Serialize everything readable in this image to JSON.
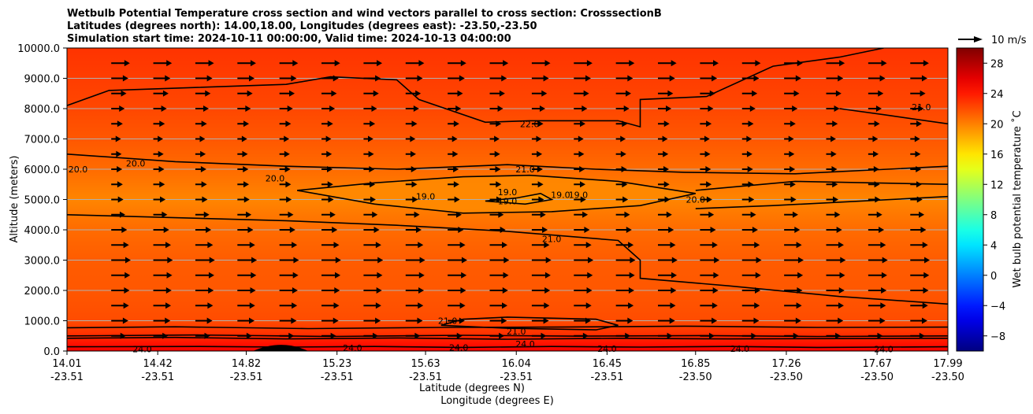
{
  "chart_data": {
    "type": "heatmap",
    "title": [
      "Wetbulb Potential Temperature cross section and wind vectors parallel to cross section: CrosssectionB",
      "Latitudes (degrees north): 14.00,18.00, Longitudes (degrees east): -23.50,-23.50",
      "Simulation start time: 2024-10-11 00:00:00, Valid time: 2024-10-13 04:00:00"
    ],
    "ylabel": "Altitude (meters)",
    "xlabel": "Latitude (degrees N)",
    "xlabel2": "Longitude (degrees E)",
    "ylim": [
      0,
      10000
    ],
    "y_ticks": [
      "0.0",
      "1000.0",
      "2000.0",
      "3000.0",
      "4000.0",
      "5000.0",
      "6000.0",
      "7000.0",
      "8000.0",
      "9000.0",
      "10000.0"
    ],
    "y_tick_values": [
      0,
      1000,
      2000,
      3000,
      4000,
      5000,
      6000,
      7000,
      8000,
      9000,
      10000
    ],
    "x_ticks": [
      {
        "lat": "14.01",
        "lon": "-23.51"
      },
      {
        "lat": "14.42",
        "lon": "-23.51"
      },
      {
        "lat": "14.82",
        "lon": "-23.51"
      },
      {
        "lat": "15.23",
        "lon": "-23.51"
      },
      {
        "lat": "15.63",
        "lon": "-23.51"
      },
      {
        "lat": "16.04",
        "lon": "-23.51"
      },
      {
        "lat": "16.45",
        "lon": "-23.51"
      },
      {
        "lat": "16.85",
        "lon": "-23.50"
      },
      {
        "lat": "17.26",
        "lon": "-23.50"
      },
      {
        "lat": "17.67",
        "lon": "-23.50"
      },
      {
        "lat": "17.99",
        "lon": "-23.50"
      }
    ],
    "xlim": [
      14.01,
      17.99
    ],
    "colorbar": {
      "label": "Wet bulb potential temperature ˚C",
      "ticks": [
        "−8",
        "−4",
        "0",
        "4",
        "8",
        "12",
        "16",
        "20",
        "24",
        "28"
      ],
      "tick_values": [
        -8,
        -4,
        0,
        4,
        8,
        12,
        16,
        20,
        24,
        28
      ],
      "range": [
        -10,
        30
      ],
      "colormap": "jet"
    },
    "quiver_key": "10 m/s",
    "grid": "horizontal",
    "field_profile": [
      {
        "altitude": 0,
        "theta_w": 25.5
      },
      {
        "altitude": 250,
        "theta_w": 24.3
      },
      {
        "altitude": 600,
        "theta_w": 23.0
      },
      {
        "altitude": 1000,
        "theta_w": 22.0
      },
      {
        "altitude": 2000,
        "theta_w": 21.6
      },
      {
        "altitude": 3000,
        "theta_w": 21.4
      },
      {
        "altitude": 4000,
        "theta_w": 20.8
      },
      {
        "altitude": 5000,
        "theta_w": 19.8
      },
      {
        "altitude": 6000,
        "theta_w": 20.8
      },
      {
        "altitude": 7000,
        "theta_w": 21.6
      },
      {
        "altitude": 8000,
        "theta_w": 22.2
      },
      {
        "altitude": 9000,
        "theta_w": 22.6
      },
      {
        "altitude": 10000,
        "theta_w": 23.0
      }
    ],
    "contours": [
      {
        "level": "24.0",
        "lines": [
          [
            [
              14.01,
              140
            ],
            [
              14.6,
              150
            ],
            [
              15.0,
              130
            ],
            [
              15.4,
              150
            ],
            [
              15.8,
              120
            ],
            [
              16.2,
              150
            ],
            [
              16.6,
              130
            ],
            [
              17.0,
              150
            ],
            [
              17.4,
              120
            ],
            [
              17.99,
              140
            ]
          ],
          [
            [
              14.01,
              420
            ],
            [
              14.5,
              450
            ],
            [
              15.0,
              400
            ],
            [
              15.5,
              430
            ],
            [
              16.0,
              390
            ],
            [
              16.5,
              420
            ],
            [
              17.0,
              400
            ],
            [
              17.5,
              410
            ],
            [
              17.99,
              420
            ]
          ]
        ]
      },
      {
        "level": "23.0",
        "lines": [
          [
            [
              14.01,
              500
            ],
            [
              14.6,
              530
            ],
            [
              15.2,
              480
            ],
            [
              15.8,
              520
            ],
            [
              16.3,
              490
            ],
            [
              16.9,
              510
            ],
            [
              17.4,
              480
            ],
            [
              17.99,
              500
            ]
          ]
        ]
      },
      {
        "level": "22.0",
        "lines": [
          [
            [
              14.01,
              770
            ],
            [
              14.5,
              800
            ],
            [
              15.1,
              740
            ],
            [
              15.7,
              780
            ],
            [
              16.2,
              790
            ],
            [
              16.8,
              820
            ],
            [
              17.4,
              780
            ],
            [
              17.99,
              790
            ]
          ],
          [
            [
              14.01,
              8100
            ],
            [
              14.2,
              8600
            ],
            [
              14.6,
              8700
            ],
            [
              15.0,
              8800
            ],
            [
              15.2,
              9050
            ],
            [
              15.5,
              8950
            ],
            [
              15.6,
              8300
            ],
            [
              15.9,
              7550
            ],
            [
              16.1,
              7600
            ],
            [
              16.5,
              7600
            ],
            [
              16.6,
              7400
            ],
            [
              16.6,
              8300
            ],
            [
              16.9,
              8400
            ],
            [
              17.2,
              9400
            ],
            [
              17.5,
              9700
            ],
            [
              17.7,
              10000
            ]
          ]
        ]
      },
      {
        "level": "21.0",
        "lines": [
          [
            [
              14.01,
              6500
            ],
            [
              14.5,
              6250
            ],
            [
              15.0,
              6100
            ],
            [
              15.5,
              6000
            ],
            [
              16.0,
              6150
            ],
            [
              16.4,
              6000
            ],
            [
              16.8,
              5900
            ],
            [
              17.3,
              5850
            ],
            [
              17.99,
              6100
            ]
          ],
          [
            [
              14.01,
              4500
            ],
            [
              14.5,
              4400
            ],
            [
              15.0,
              4300
            ],
            [
              15.5,
              4150
            ],
            [
              16.0,
              3950
            ],
            [
              16.5,
              3650
            ],
            [
              16.6,
              3000
            ],
            [
              16.6,
              2400
            ],
            [
              17.0,
              2150
            ],
            [
              17.5,
              1800
            ],
            [
              17.99,
              1550
            ]
          ],
          [
            [
              15.7,
              850
            ],
            [
              16.0,
              750
            ],
            [
              16.4,
              700
            ],
            [
              16.5,
              850
            ],
            [
              16.4,
              1050
            ],
            [
              16.0,
              1120
            ],
            [
              15.8,
              1050
            ],
            [
              15.7,
              850
            ]
          ],
          [
            [
              17.5,
              8000
            ],
            [
              17.7,
              7800
            ],
            [
              17.99,
              7500
            ]
          ]
        ]
      },
      {
        "level": "20.0",
        "lines": [
          [
            [
              15.05,
              5300
            ],
            [
              15.4,
              5550
            ],
            [
              15.8,
              5750
            ],
            [
              16.1,
              5800
            ],
            [
              16.5,
              5600
            ],
            [
              16.85,
              5200
            ],
            [
              16.6,
              4800
            ],
            [
              16.2,
              4600
            ],
            [
              15.8,
              4550
            ],
            [
              15.4,
              4850
            ],
            [
              15.05,
              5300
            ]
          ],
          [
            [
              16.85,
              4700
            ],
            [
              17.2,
              4800
            ],
            [
              17.6,
              4950
            ],
            [
              17.99,
              5100
            ]
          ],
          [
            [
              16.85,
              5300
            ],
            [
              17.3,
              5600
            ],
            [
              17.99,
              5500
            ]
          ]
        ]
      },
      {
        "level": "19.0",
        "lines": [
          [
            [
              15.9,
              4950
            ],
            [
              16.04,
              5050
            ],
            [
              16.15,
              5200
            ],
            [
              16.2,
              5000
            ],
            [
              16.08,
              4850
            ],
            [
              15.9,
              4950
            ]
          ]
        ]
      }
    ],
    "contour_labels": [
      {
        "text": "24.0",
        "lat": 14.35,
        "alt": 60
      },
      {
        "text": "24.0",
        "lat": 15.3,
        "alt": 100
      },
      {
        "text": "24.0",
        "lat": 15.78,
        "alt": 120
      },
      {
        "text": "24.0",
        "lat": 16.08,
        "alt": 240
      },
      {
        "text": "24.0",
        "lat": 16.45,
        "alt": 80
      },
      {
        "text": "24.0",
        "lat": 17.05,
        "alt": 80
      },
      {
        "text": "24.0",
        "lat": 17.7,
        "alt": 60
      },
      {
        "text": "21.0",
        "lat": 16.04,
        "alt": 650
      },
      {
        "text": "21.0",
        "lat": 16.2,
        "alt": 3700
      },
      {
        "text": "21.0",
        "lat": 16.08,
        "alt": 6000
      },
      {
        "text": "22.0",
        "lat": 16.1,
        "alt": 7500
      },
      {
        "text": "21.0",
        "lat": 17.87,
        "alt": 8050
      },
      {
        "text": "20.0",
        "lat": 14.06,
        "alt": 6000
      },
      {
        "text": "20.0",
        "lat": 14.32,
        "alt": 6200
      },
      {
        "text": "20.0",
        "lat": 14.95,
        "alt": 5700
      },
      {
        "text": "20.0",
        "lat": 16.85,
        "alt": 5000
      },
      {
        "text": "19.0",
        "lat": 15.63,
        "alt": 5100
      },
      {
        "text": "19.0",
        "lat": 16.0,
        "alt": 5250
      },
      {
        "text": "19.0",
        "lat": 16.0,
        "alt": 4950
      },
      {
        "text": "19.0",
        "lat": 16.24,
        "alt": 5150
      },
      {
        "text": "19.0",
        "lat": 16.32,
        "alt": 5150
      },
      {
        "text": "21.0",
        "lat": 15.73,
        "alt": 1000
      }
    ],
    "wind_speed_levels": [
      {
        "altitude": 500,
        "speed": 6
      },
      {
        "altitude": 1000,
        "speed": 7
      },
      {
        "altitude": 3000,
        "speed": 8
      },
      {
        "altitude": 5000,
        "speed": 5
      },
      {
        "altitude": 7000,
        "speed": 4
      },
      {
        "altitude": 9000,
        "speed": 7
      },
      {
        "altitude": 9800,
        "speed": 8
      }
    ],
    "terrain": [
      {
        "lat": 14.85,
        "alt": 0
      },
      {
        "lat": 14.98,
        "alt": 150
      },
      {
        "lat": 15.1,
        "alt": 0
      }
    ]
  }
}
